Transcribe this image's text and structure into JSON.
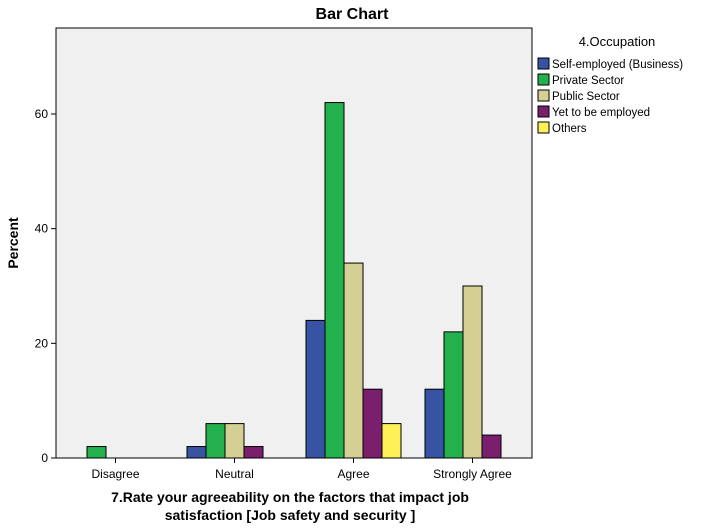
{
  "chart_data": {
    "type": "bar",
    "title": "Bar Chart",
    "xlabel_lines": [
      "7.Rate your agreeability on the factors that impact job",
      "satisfaction  [Job safety and security ]"
    ],
    "ylabel": "Percent",
    "ylim": [
      0,
      75
    ],
    "yticks": [
      0,
      20,
      40,
      60
    ],
    "categories": [
      "Disagree",
      "Neutral",
      "Agree",
      "Strongly Agree"
    ],
    "legend_title": "4.Occupation",
    "legend_position": "right",
    "grid": false,
    "series": [
      {
        "name": "Self-employed (Business)",
        "color": "#3953a4",
        "values": [
          0,
          2,
          24,
          12
        ]
      },
      {
        "name": "Private Sector",
        "color": "#22b14c",
        "values": [
          2,
          6,
          62,
          22
        ]
      },
      {
        "name": "Public Sector",
        "color": "#d4cf92",
        "values": [
          0,
          6,
          34,
          30
        ]
      },
      {
        "name": "Yet to be employed",
        "color": "#7a1f6e",
        "values": [
          0,
          2,
          12,
          4
        ]
      },
      {
        "name": "Others",
        "color": "#fdf157",
        "values": [
          0,
          0,
          6,
          0
        ]
      }
    ]
  }
}
